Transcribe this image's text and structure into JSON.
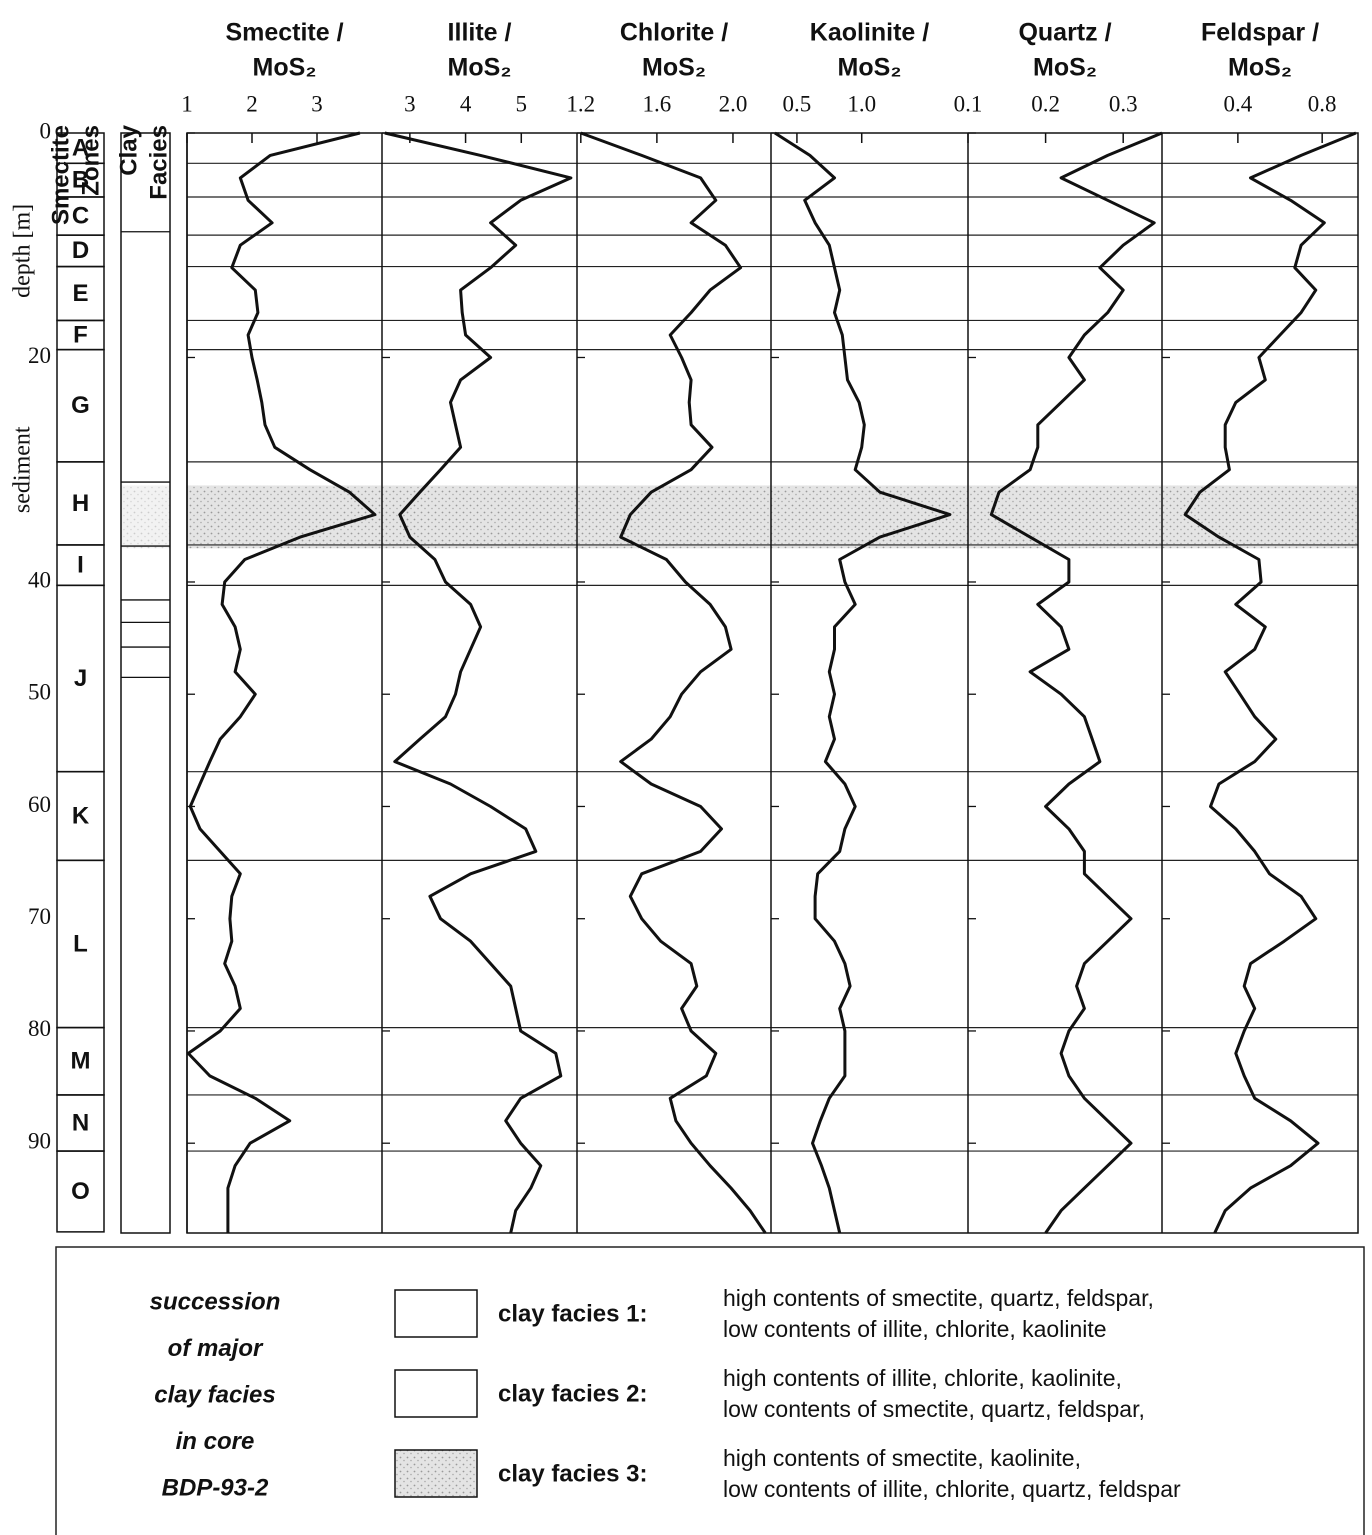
{
  "zones_header": [
    "Smectite",
    "Zones"
  ],
  "facies_header": [
    "Clay",
    "Facies"
  ],
  "depth_axis": {
    "ylabel": [
      "sediment",
      "depth [m]"
    ],
    "ylim": [
      0,
      98
    ],
    "yticks": [
      0,
      20,
      40,
      50,
      60,
      70,
      80,
      90
    ]
  },
  "depth": [
    0,
    2,
    4,
    6,
    8,
    10,
    12,
    14,
    16,
    18,
    20,
    22,
    24,
    26,
    28,
    30,
    32,
    34,
    36,
    38,
    40,
    42,
    44,
    46,
    48,
    50,
    52,
    54,
    56,
    58,
    60,
    62,
    64,
    66,
    68,
    70,
    72,
    74,
    76,
    78,
    80,
    82,
    84,
    86,
    88,
    90,
    92,
    94,
    96,
    98
  ],
  "zones": [
    {
      "label": "A",
      "top": 0,
      "bottom": 2.7
    },
    {
      "label": "B",
      "top": 2.7,
      "bottom": 5.7
    },
    {
      "label": "C",
      "top": 5.7,
      "bottom": 9.1
    },
    {
      "label": "D",
      "top": 9.1,
      "bottom": 11.9
    },
    {
      "label": "E",
      "top": 11.9,
      "bottom": 16.7
    },
    {
      "label": "F",
      "top": 16.7,
      "bottom": 19.3
    },
    {
      "label": "G",
      "top": 19.3,
      "bottom": 29.3
    },
    {
      "label": "H",
      "top": 29.3,
      "bottom": 36.7
    },
    {
      "label": "I",
      "top": 36.7,
      "bottom": 40.3
    },
    {
      "label": "J",
      "top": 40.3,
      "bottom": 56.9
    },
    {
      "label": "K",
      "top": 56.9,
      "bottom": 64.8
    },
    {
      "label": "L",
      "top": 64.8,
      "bottom": 79.7
    },
    {
      "label": "M",
      "top": 79.7,
      "bottom": 85.7
    },
    {
      "label": "N",
      "top": 85.7,
      "bottom": 90.7
    },
    {
      "label": "O",
      "top": 90.7,
      "bottom": 97.9
    }
  ],
  "facies": {
    "boundaries": [
      8.8,
      31.1,
      36.8,
      41.6,
      43.6,
      45.8,
      48.5
    ],
    "facies_3": [
      31.4,
      37
    ]
  },
  "chart_data": [
    {
      "type": "line",
      "title": [
        "Smectite /",
        "MoS₂"
      ],
      "xlim": [
        1,
        4
      ],
      "xticks": [
        1,
        2,
        3
      ],
      "color": "#111111",
      "values": [
        3.66,
        2.28,
        1.82,
        1.94,
        2.31,
        1.82,
        1.69,
        2.05,
        2.09,
        1.94,
        2.0,
        2.08,
        2.15,
        2.2,
        2.35,
        2.89,
        3.5,
        3.89,
        2.74,
        1.89,
        1.58,
        1.54,
        1.74,
        1.82,
        1.74,
        2.05,
        1.82,
        1.51,
        1.35,
        1.2,
        1.05,
        1.2,
        1.51,
        1.82,
        1.69,
        1.66,
        1.69,
        1.58,
        1.74,
        1.82,
        1.51,
        1.02,
        1.35,
        2.05,
        2.58,
        1.97,
        1.74,
        1.63,
        1.63,
        1.63
      ]
    },
    {
      "type": "line",
      "title": [
        "Illite /",
        "MoS₂"
      ],
      "xlim": [
        2.5,
        6
      ],
      "xticks": [
        3,
        4,
        5
      ],
      "color": "#111111",
      "values": [
        2.55,
        4.27,
        5.89,
        4.99,
        4.45,
        4.9,
        4.45,
        3.91,
        3.94,
        4.0,
        4.45,
        3.91,
        3.73,
        3.82,
        3.91,
        3.55,
        3.18,
        2.82,
        3.0,
        3.45,
        3.64,
        4.09,
        4.27,
        4.09,
        3.91,
        3.82,
        3.64,
        3.18,
        2.73,
        3.73,
        4.45,
        5.08,
        5.26,
        4.09,
        3.36,
        3.55,
        4.09,
        4.45,
        4.81,
        4.9,
        4.99,
        5.62,
        5.71,
        4.99,
        4.72,
        4.99,
        5.35,
        5.17,
        4.9,
        4.81
      ]
    },
    {
      "type": "line",
      "title": [
        "Chlorite /",
        "MoS₂"
      ],
      "xlim": [
        1.18,
        2.2
      ],
      "xticks": [
        1.2,
        1.6,
        {
          "value": 2.0,
          "label": "2.0"
        }
      ],
      "color": "#111111",
      "values": [
        1.2,
        1.52,
        1.83,
        1.91,
        1.78,
        1.96,
        2.04,
        1.88,
        1.78,
        1.67,
        1.73,
        1.78,
        1.77,
        1.78,
        1.89,
        1.78,
        1.57,
        1.46,
        1.41,
        1.65,
        1.75,
        1.88,
        1.96,
        1.99,
        1.83,
        1.73,
        1.67,
        1.57,
        1.41,
        1.57,
        1.83,
        1.94,
        1.83,
        1.52,
        1.46,
        1.52,
        1.62,
        1.78,
        1.81,
        1.73,
        1.78,
        1.91,
        1.86,
        1.67,
        1.7,
        1.78,
        1.88,
        1.99,
        2.09,
        2.17
      ]
    },
    {
      "type": "line",
      "title": [
        "Kaolinite /",
        "MoS₂"
      ],
      "xlim": [
        0.3,
        1.82
      ],
      "xticks": [
        0.5,
        {
          "value": 1.0,
          "label": "1.0"
        }
      ],
      "color": "#111111",
      "values": [
        0.33,
        0.6,
        0.79,
        0.56,
        0.64,
        0.75,
        0.79,
        0.83,
        0.79,
        0.85,
        0.87,
        0.89,
        0.98,
        1.02,
        1.0,
        0.95,
        1.14,
        1.68,
        1.14,
        0.83,
        0.87,
        0.95,
        0.79,
        0.79,
        0.75,
        0.79,
        0.75,
        0.79,
        0.72,
        0.87,
        0.95,
        0.87,
        0.83,
        0.66,
        0.64,
        0.64,
        0.79,
        0.87,
        0.91,
        0.83,
        0.87,
        0.87,
        0.87,
        0.75,
        0.68,
        0.62,
        0.69,
        0.75,
        0.79,
        0.83
      ]
    },
    {
      "type": "line",
      "title": [
        "Quartz /",
        "MoS₂"
      ],
      "xlim": [
        0.1,
        0.35
      ],
      "xticks": [
        0.1,
        0.2,
        0.3
      ],
      "color": "#111111",
      "values": [
        0.35,
        0.28,
        0.22,
        0.28,
        0.34,
        0.3,
        0.27,
        0.3,
        0.28,
        0.25,
        0.23,
        0.25,
        0.22,
        0.19,
        0.19,
        0.18,
        0.14,
        0.13,
        0.18,
        0.23,
        0.23,
        0.19,
        0.22,
        0.23,
        0.18,
        0.22,
        0.25,
        0.26,
        0.27,
        0.23,
        0.2,
        0.23,
        0.25,
        0.25,
        0.28,
        0.31,
        0.28,
        0.25,
        0.24,
        0.25,
        0.23,
        0.22,
        0.23,
        0.25,
        0.28,
        0.31,
        0.28,
        0.25,
        0.22,
        0.2
      ]
    },
    {
      "type": "line",
      "title": [
        "Feldspar /",
        "MoS₂"
      ],
      "xlim": [
        0.04,
        0.97
      ],
      "xticks": [
        0.4,
        0.8
      ],
      "color": "#111111",
      "values": [
        0.96,
        0.7,
        0.46,
        0.65,
        0.81,
        0.7,
        0.67,
        0.77,
        0.7,
        0.6,
        0.5,
        0.53,
        0.39,
        0.34,
        0.34,
        0.36,
        0.22,
        0.15,
        0.31,
        0.5,
        0.51,
        0.39,
        0.53,
        0.48,
        0.34,
        0.41,
        0.48,
        0.58,
        0.48,
        0.31,
        0.27,
        0.39,
        0.48,
        0.55,
        0.7,
        0.77,
        0.62,
        0.46,
        0.43,
        0.48,
        0.43,
        0.39,
        0.43,
        0.48,
        0.65,
        0.78,
        0.65,
        0.46,
        0.34,
        0.29
      ]
    }
  ],
  "legend": {
    "title": [
      "succession",
      "of major",
      "clay facies",
      "in core",
      "BDP-93-2"
    ],
    "items": [
      {
        "label": "clay facies 1:",
        "description": [
          "high contents of smectite, quartz, feldspar,",
          "low contents of illite, chlorite, kaolinite"
        ]
      },
      {
        "label": "clay facies 2:",
        "description": [
          "high contents of  illite, chlorite, kaolinite,",
          "low contents of smectite, quartz, feldspar,"
        ]
      },
      {
        "label": "clay facies 3:",
        "description": [
          "high contents of smectite, kaolinite,",
          "low contents of illite, chlorite, quartz, feldspar"
        ]
      }
    ]
  }
}
